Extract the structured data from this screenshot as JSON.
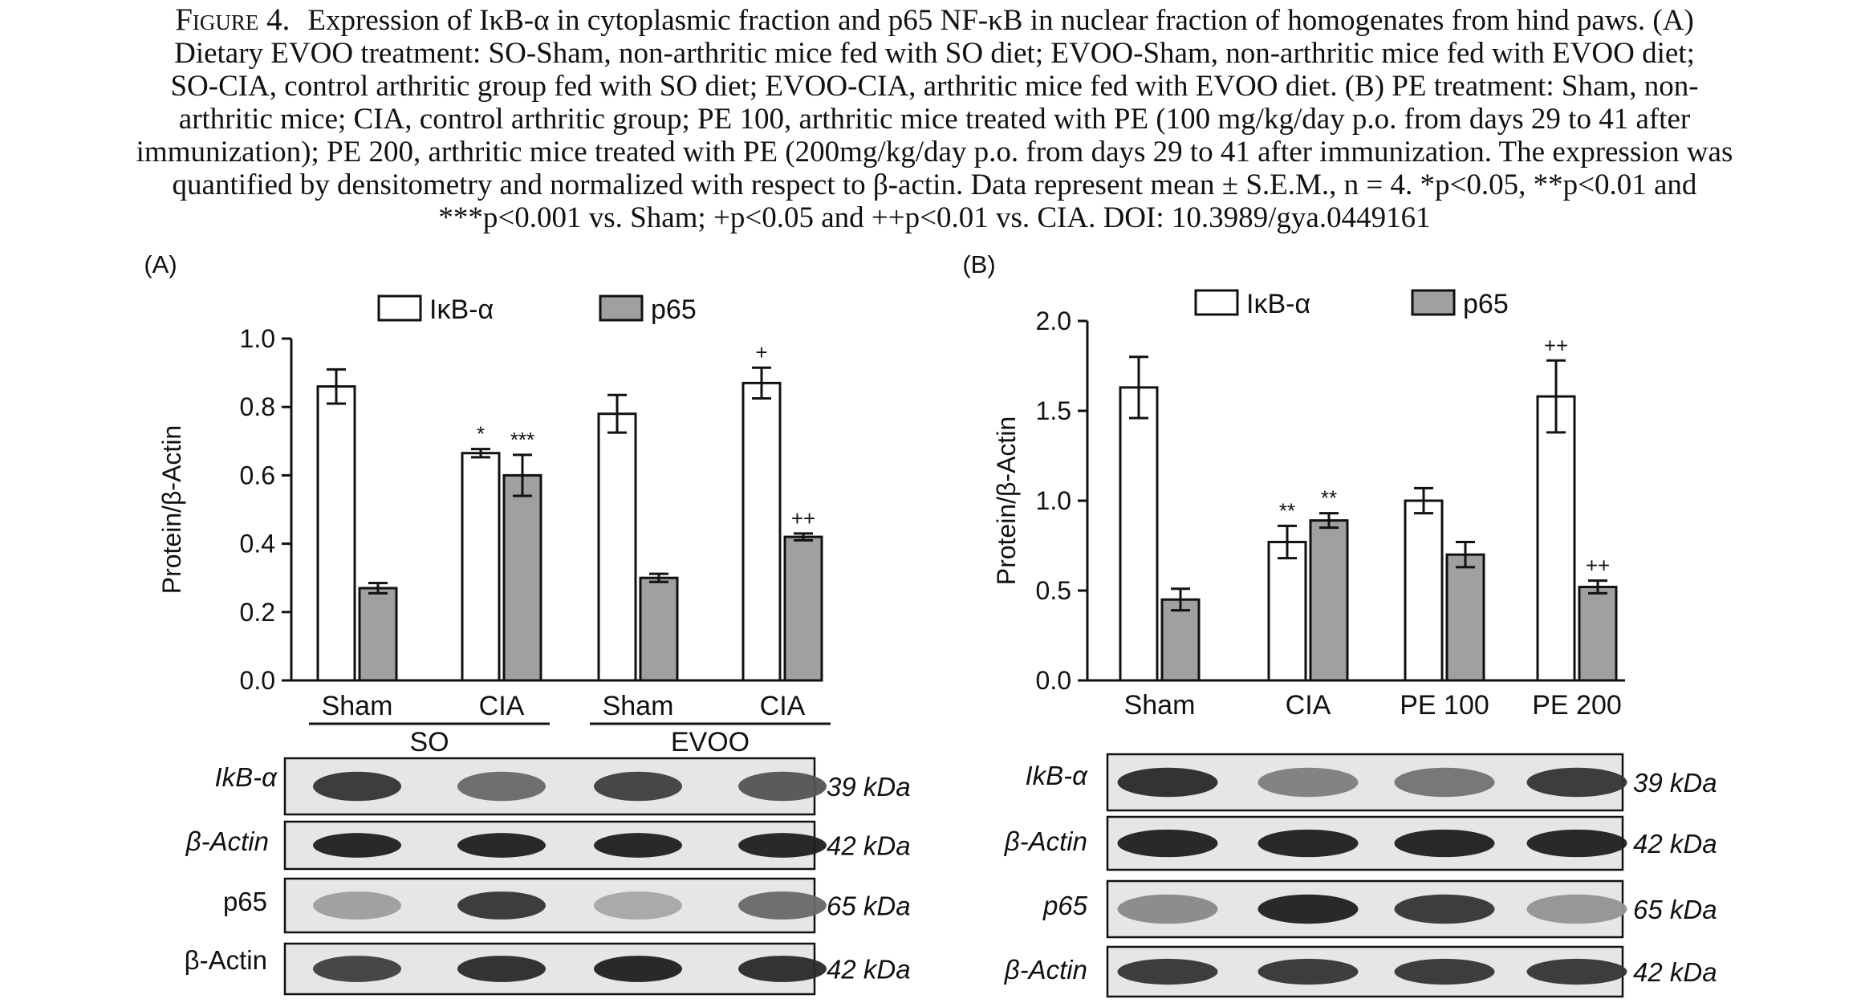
{
  "caption": {
    "figure_label": "Figure 4.",
    "lines": [
      "Expression of IκB-α in cytoplasmic fraction and p65 NF-κB in nuclear fraction of homogenates from hind paws. (A)",
      "Dietary EVOO treatment: SO-Sham, non-arthritic mice fed with SO diet; EVOO-Sham, non-arthritic mice fed with EVOO diet;",
      "SO-CIA, control arthritic group fed with SO diet; EVOO-CIA, arthritic mice fed with EVOO diet. (B) PE treatment: Sham, non-",
      "arthritic mice; CIA, control arthritic group; PE 100, arthritic mice treated with PE (100 mg/kg/day p.o. from days 29 to 41 after",
      "immunization); PE 200, arthritic mice treated with PE (200mg/kg/day p.o. from days 29 to 41 after immunization. The expression was",
      "quantified by densitometry and normalized with respect to β-actin. Data represent mean ± S.E.M., n = 4. *p<0.05, **p<0.01 and",
      "***p<0.001 vs. Sham; +p<0.05 and ++p<0.01 vs. CIA. DOI: 10.3989/gya.0449161"
    ]
  },
  "chart_data": [
    {
      "type": "bar",
      "panel_label": "(A)",
      "ylabel": "Protein/β-Actin",
      "ylim": [
        0,
        1.0
      ],
      "yticks": [
        "0.0",
        "0.2",
        "0.4",
        "0.6",
        "0.8",
        "1.0"
      ],
      "categories": [
        "Sham",
        "CIA",
        "Sham",
        "CIA"
      ],
      "groups": [
        {
          "label": "SO",
          "span": [
            0,
            1
          ]
        },
        {
          "label": "EVOO",
          "span": [
            2,
            3
          ]
        }
      ],
      "legend_position": "top",
      "series": [
        {
          "name": "IκB-α",
          "color": "#ffffff",
          "values": [
            0.86,
            0.665,
            0.78,
            0.87
          ],
          "errors": [
            0.05,
            0.012,
            0.055,
            0.045
          ],
          "annotations": [
            "",
            "*",
            "",
            "+"
          ]
        },
        {
          "name": "p65",
          "color": "#a0a0a0",
          "values": [
            0.27,
            0.6,
            0.3,
            0.42
          ],
          "errors": [
            0.015,
            0.06,
            0.012,
            0.01
          ],
          "annotations": [
            "",
            "***",
            "",
            "++"
          ]
        }
      ],
      "blots": [
        {
          "label": "IkB-α",
          "italic": true,
          "size": "39 kDa",
          "intensities": [
            0.85,
            0.6,
            0.8,
            0.7
          ]
        },
        {
          "label": "β-Actin",
          "italic": true,
          "size": "42 kDa",
          "intensities": [
            0.95,
            0.95,
            0.95,
            0.95
          ]
        },
        {
          "label": "p65",
          "italic": false,
          "size": "65 kDa",
          "intensities": [
            0.35,
            0.85,
            0.3,
            0.6
          ]
        },
        {
          "label": "β-Actin",
          "italic": false,
          "size": "42 kDa",
          "intensities": [
            0.8,
            0.9,
            0.95,
            0.9
          ]
        }
      ]
    },
    {
      "type": "bar",
      "panel_label": "(B)",
      "ylabel": "Protein/β-Actin",
      "ylim": [
        0,
        2.0
      ],
      "yticks": [
        "0.0",
        "0.5",
        "1.0",
        "1.5",
        "2.0"
      ],
      "categories": [
        "Sham",
        "CIA",
        "PE 100",
        "PE 200"
      ],
      "legend_position": "top",
      "series": [
        {
          "name": "IκB-α",
          "color": "#ffffff",
          "values": [
            1.63,
            0.77,
            1.0,
            1.58
          ],
          "errors": [
            0.17,
            0.09,
            0.07,
            0.2
          ],
          "annotations": [
            "",
            "**",
            "",
            "++"
          ]
        },
        {
          "name": "p65",
          "color": "#a0a0a0",
          "values": [
            0.45,
            0.89,
            0.7,
            0.52
          ],
          "errors": [
            0.06,
            0.04,
            0.07,
            0.035
          ],
          "annotations": [
            "",
            "**",
            "",
            "++"
          ]
        }
      ],
      "blots": [
        {
          "label": "IkB-α",
          "italic": true,
          "size": "39 kDa",
          "intensities": [
            0.9,
            0.5,
            0.55,
            0.85
          ]
        },
        {
          "label": "β-Actin",
          "italic": true,
          "size": "42 kDa",
          "intensities": [
            0.95,
            0.95,
            0.95,
            0.95
          ]
        },
        {
          "label": "p65",
          "italic": true,
          "size": "65 kDa",
          "intensities": [
            0.45,
            0.95,
            0.85,
            0.4
          ]
        },
        {
          "label": "β-Actin",
          "italic": true,
          "size": "42 kDa",
          "intensities": [
            0.85,
            0.85,
            0.85,
            0.85
          ]
        }
      ]
    }
  ]
}
